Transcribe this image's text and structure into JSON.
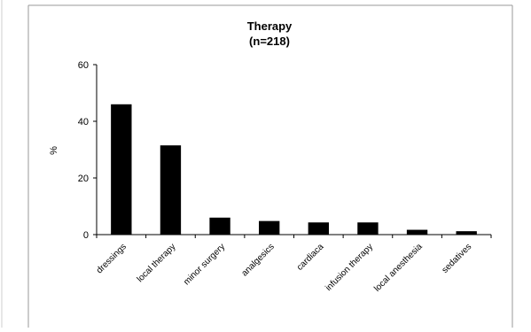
{
  "chart_data": {
    "type": "bar",
    "title": "Therapy",
    "subtitle": "(n=218)",
    "xlabel": "",
    "ylabel": "%",
    "ylim": [
      0,
      60
    ],
    "yticks": [
      0,
      20,
      40,
      60
    ],
    "grid": false,
    "legend": "none",
    "categories": [
      "dressings",
      "local therapy",
      "minor surgery",
      "analgesics",
      "cardiaca",
      "infusion therapy",
      "local anesthesia",
      "sedatives"
    ],
    "values": [
      46,
      31.5,
      6,
      4.8,
      4.3,
      4.3,
      1.7,
      1.2
    ],
    "bar_color": "#000000"
  }
}
